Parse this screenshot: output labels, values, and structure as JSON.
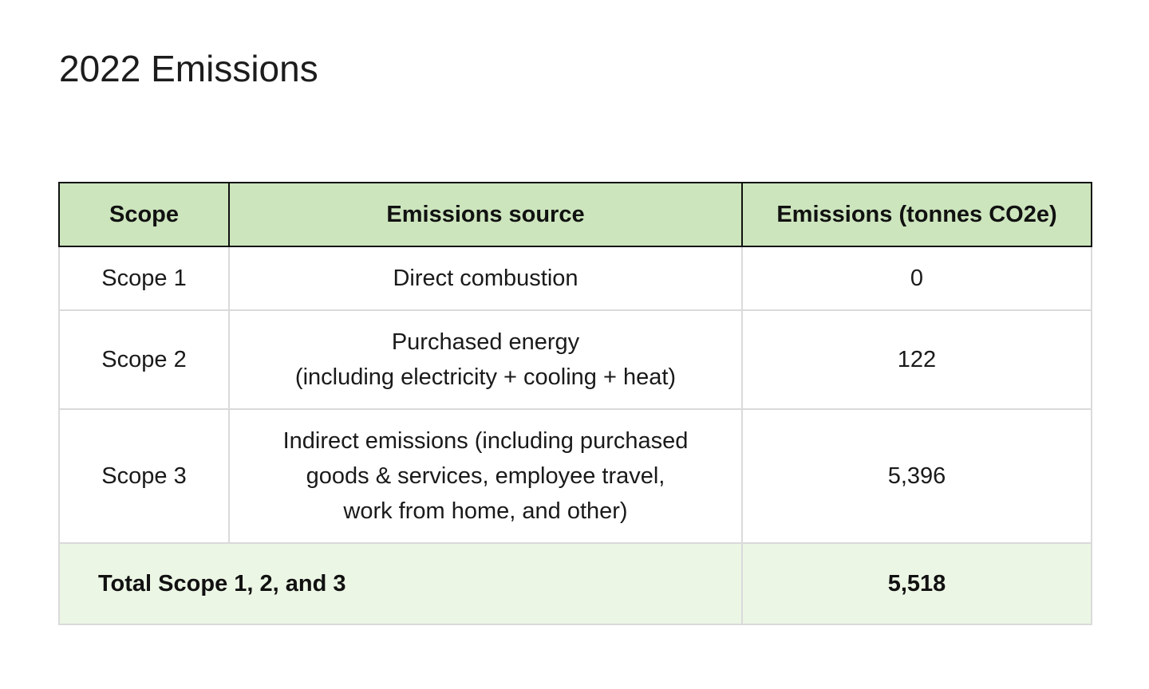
{
  "page": {
    "title": "2022 Emissions"
  },
  "table": {
    "headers": {
      "scope": "Scope",
      "source": "Emissions source",
      "emissions": "Emissions (tonnes CO2e)"
    },
    "rows": [
      {
        "scope": "Scope 1",
        "source_lines": [
          "Direct combustion"
        ],
        "emissions": "0"
      },
      {
        "scope": "Scope 2",
        "source_lines": [
          "Purchased energy",
          "(including electricity + cooling + heat)"
        ],
        "emissions": "122"
      },
      {
        "scope": "Scope 3",
        "source_lines": [
          "Indirect emissions (including purchased",
          "goods & services, employee travel,",
          "work from home, and other)"
        ],
        "emissions": "5,396"
      }
    ],
    "total": {
      "label": "Total Scope 1, 2, and 3",
      "emissions": "5,518"
    }
  },
  "colors": {
    "header_bg": "#cce5bd",
    "total_bg": "#ecf6e5",
    "header_border": "#111111",
    "cell_border": "#dadada"
  }
}
